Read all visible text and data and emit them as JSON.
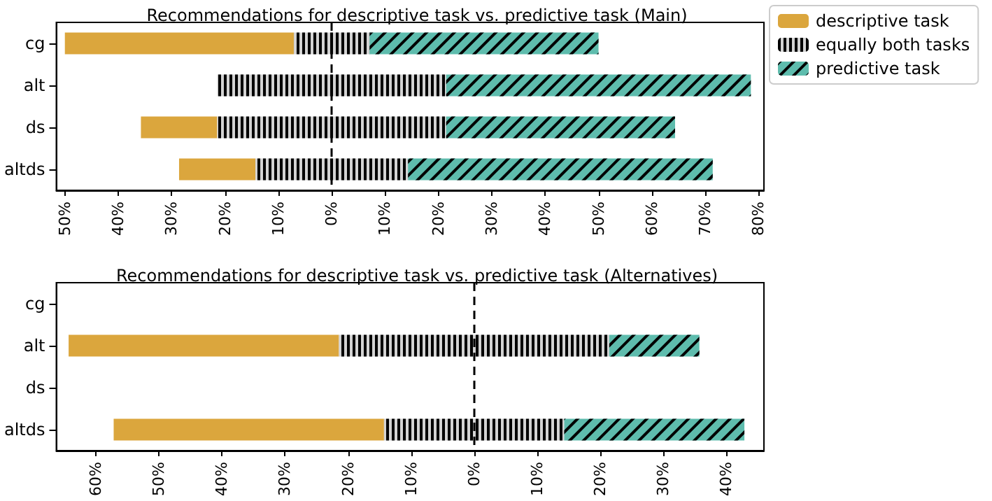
{
  "chart_data": [
    {
      "type": "bar",
      "title": "Recommendations for descriptive task vs. predictive task (Main)",
      "orientation": "horizontal",
      "categories": [
        "cg",
        "alt",
        "ds",
        "altds"
      ],
      "series": [
        {
          "name": "descriptive task",
          "color": "#dba63d",
          "base": [
            -50.0,
            null,
            -35.75,
            -28.6
          ],
          "values": [
            42.9,
            null,
            14.3,
            14.3
          ]
        },
        {
          "name": "equally both tasks",
          "color": "#d3d3d3",
          "base": [
            -7.1,
            -21.45,
            -21.45,
            -14.3
          ],
          "values": [
            14.2,
            42.9,
            42.9,
            28.6
          ]
        },
        {
          "name": "predictive task",
          "color": "#5ebcad",
          "base": [
            7.1,
            21.45,
            21.45,
            14.3
          ],
          "values": [
            42.9,
            57.1,
            42.9,
            57.1
          ]
        }
      ],
      "xlim": [
        -51.6,
        81
      ],
      "xticks": [
        {
          "value": -50,
          "label": "50%"
        },
        {
          "value": -40,
          "label": "40%"
        },
        {
          "value": -30,
          "label": "30%"
        },
        {
          "value": -20,
          "label": "20%"
        },
        {
          "value": -10,
          "label": "10%"
        },
        {
          "value": 0,
          "label": "0%"
        },
        {
          "value": 10,
          "label": "10%"
        },
        {
          "value": 20,
          "label": "20%"
        },
        {
          "value": 30,
          "label": "30%"
        },
        {
          "value": 40,
          "label": "40%"
        },
        {
          "value": 50,
          "label": "50%"
        },
        {
          "value": 60,
          "label": "60%"
        },
        {
          "value": 70,
          "label": "70%"
        },
        {
          "value": 80,
          "label": "80%"
        }
      ],
      "ref_lines": [
        {
          "axis": "x",
          "value": 0,
          "color": "#000000",
          "line_style": "dashed"
        }
      ],
      "legend": "top right"
    },
    {
      "type": "bar",
      "title": "Recommendations for descriptive task vs. predictive task (Alternatives)",
      "orientation": "horizontal",
      "categories": [
        "cg",
        "alt",
        "ds",
        "altds"
      ],
      "series": [
        {
          "color": "#dba63d",
          "base": [
            null,
            -64.35,
            null,
            -57.2
          ],
          "values": [
            null,
            42.9,
            null,
            42.9
          ]
        },
        {
          "color": "#d3d3d3",
          "base": [
            null,
            -21.45,
            null,
            -14.3
          ],
          "values": [
            null,
            42.9,
            null,
            28.6
          ]
        },
        {
          "color": "#5ebcad",
          "base": [
            null,
            21.45,
            null,
            14.3
          ],
          "values": [
            null,
            14.3,
            null,
            28.6
          ]
        }
      ],
      "xlim": [
        -66.3,
        46
      ],
      "xticks": [
        {
          "value": -60,
          "label": "60%"
        },
        {
          "value": -50,
          "label": "50%"
        },
        {
          "value": -40,
          "label": "40%"
        },
        {
          "value": -30,
          "label": "30%"
        },
        {
          "value": -20,
          "label": "20%"
        },
        {
          "value": -10,
          "label": "10%"
        },
        {
          "value": 0,
          "label": "0%"
        },
        {
          "value": 10,
          "label": "10%"
        },
        {
          "value": 20,
          "label": "20%"
        },
        {
          "value": 30,
          "label": "30%"
        },
        {
          "value": 40,
          "label": "40%"
        }
      ],
      "ref_lines": [
        {
          "axis": "x",
          "value": 0,
          "color": "#000000",
          "line_style": "dashed"
        }
      ]
    }
  ]
}
